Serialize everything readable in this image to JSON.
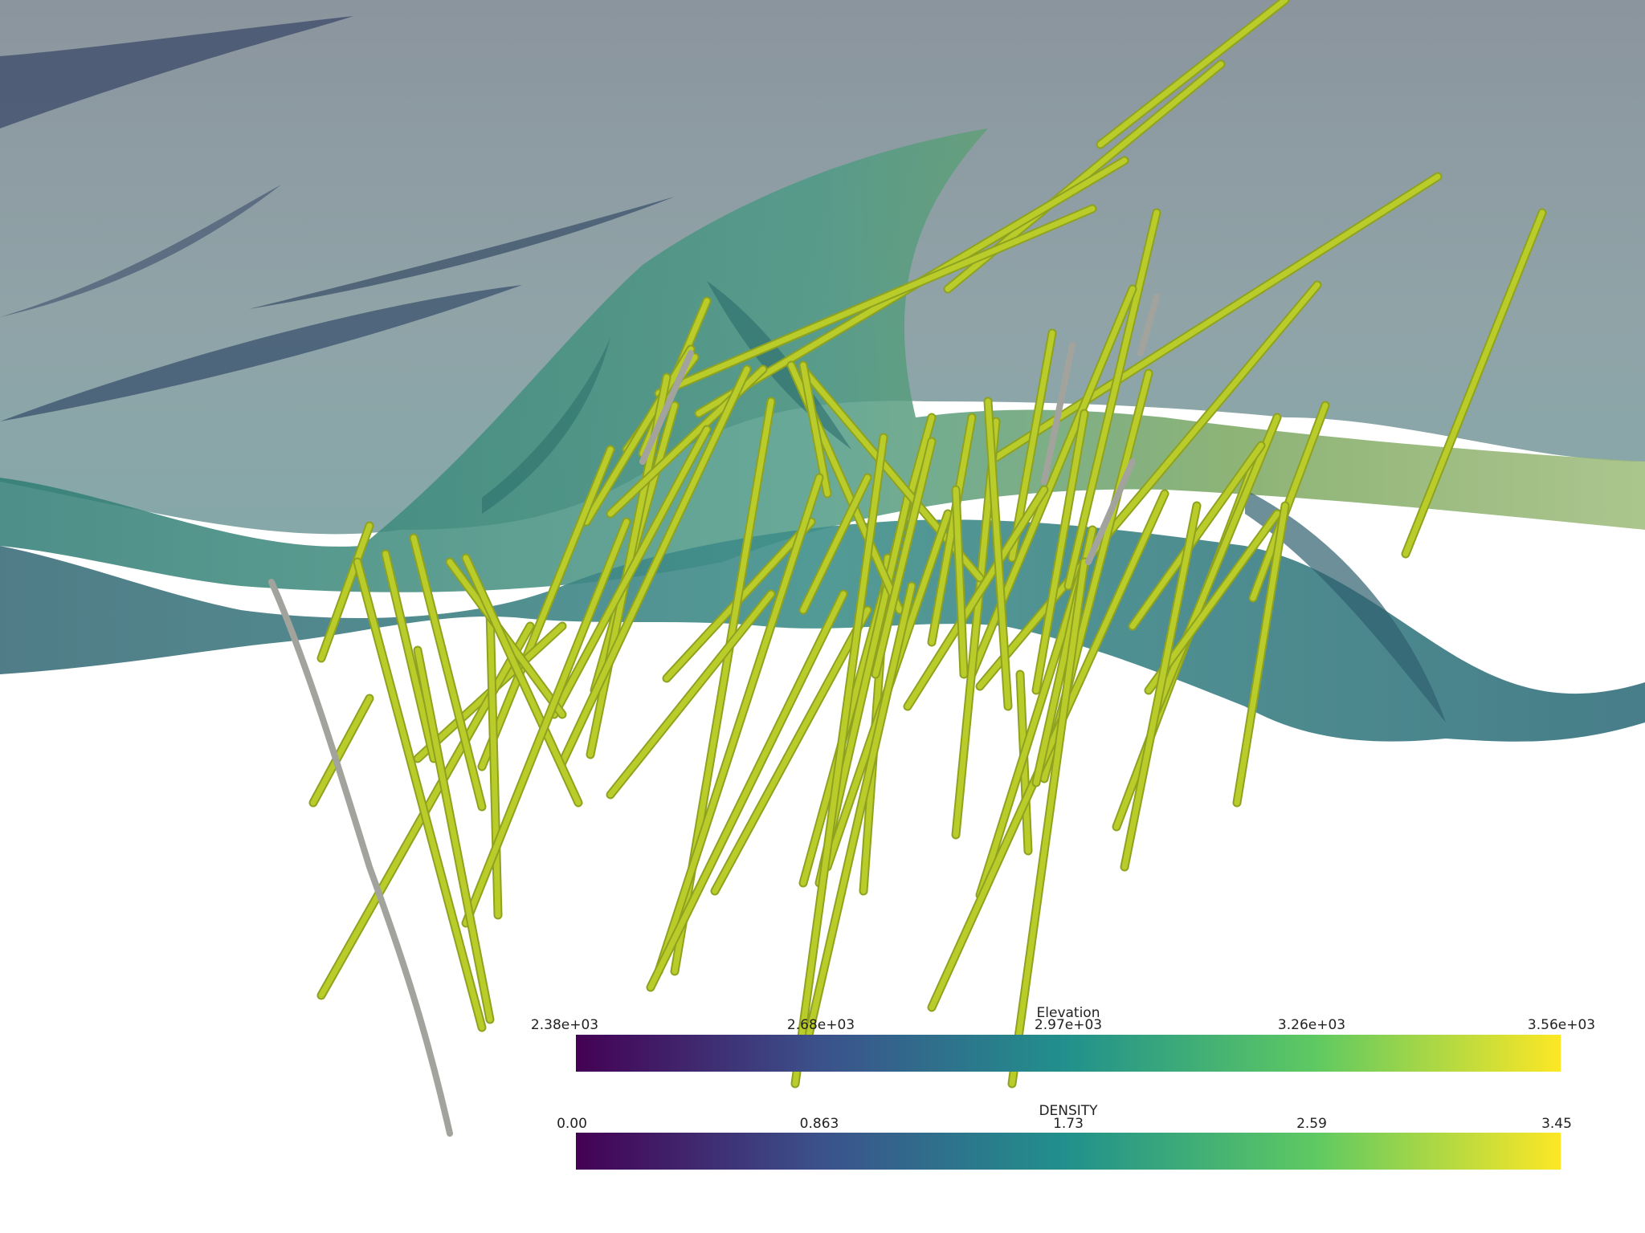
{
  "colorbars": [
    {
      "title": "Elevation",
      "ticks": [
        "2.38e+03",
        "2.68e+03",
        "2.97e+03",
        "3.26e+03",
        "3.56e+03"
      ],
      "colormap": "viridis"
    },
    {
      "title": "DENSITY",
      "ticks": [
        "0.00",
        "0.863",
        "1.73",
        "2.59",
        "3.45"
      ],
      "colormap": "viridis"
    }
  ],
  "colors": {
    "background": "#ffffff",
    "surface_upper": "#7f9499",
    "surface_lower": "#2d7f79",
    "drillhole_main": "#b9cc2a",
    "drillhole_unassayed": "#a3a39d",
    "viridis": [
      "#440154",
      "#3b528b",
      "#21918c",
      "#5ec962",
      "#fde725"
    ]
  }
}
